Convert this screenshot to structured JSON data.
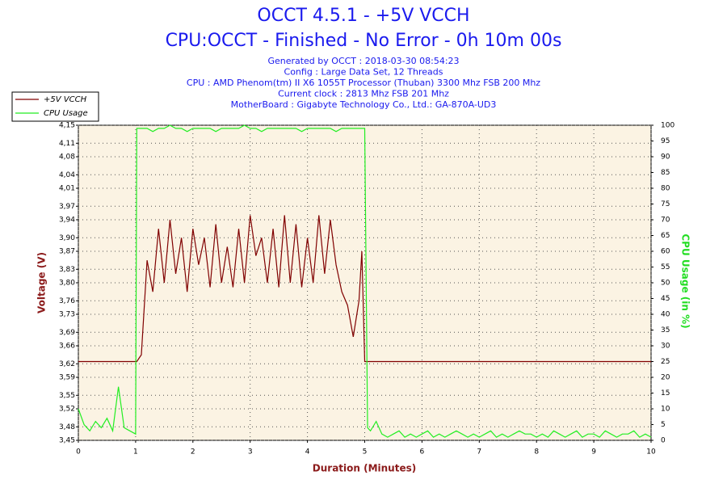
{
  "chart_data": {
    "type": "line",
    "title": "OCCT 4.5.1 - +5V VCCH",
    "subtitle": "CPU:OCCT - Finished - No Error - 0h 10m 00s",
    "info": [
      "Generated by OCCT : 2018-03-30 08:54:23",
      "Config : Large Data Set, 12 Threads",
      "CPU : AMD Phenom(tm) II X6 1055T Processor (Thuban) 3300 Mhz FSB 200 Mhz",
      "Current clock : 2813 Mhz FSB 201 Mhz",
      "MotherBoard : Gigabyte Technology Co., Ltd.: GA-870A-UD3"
    ],
    "xlabel": "Duration (Minutes)",
    "ylabel": "Voltage (V)",
    "y2label": "CPU Usage (in %)",
    "legend": "upper left",
    "grid": true,
    "xlim": [
      0,
      10
    ],
    "xticks": [
      0,
      1,
      2,
      3,
      4,
      5,
      6,
      7,
      8,
      9,
      10
    ],
    "ylim": [
      3.45,
      4.15
    ],
    "yticks": [
      {
        "value": 3.45,
        "label": "3,45"
      },
      {
        "value": 3.48,
        "label": "3,48"
      },
      {
        "value": 3.52,
        "label": "3,52"
      },
      {
        "value": 3.55,
        "label": "3,55"
      },
      {
        "value": 3.59,
        "label": "3,59"
      },
      {
        "value": 3.62,
        "label": "3,62"
      },
      {
        "value": 3.66,
        "label": "3,66"
      },
      {
        "value": 3.69,
        "label": "3,69"
      },
      {
        "value": 3.73,
        "label": "3,73"
      },
      {
        "value": 3.76,
        "label": "3,76"
      },
      {
        "value": 3.8,
        "label": "3,80"
      },
      {
        "value": 3.83,
        "label": "3,83"
      },
      {
        "value": 3.87,
        "label": "3,87"
      },
      {
        "value": 3.9,
        "label": "3,90"
      },
      {
        "value": 3.94,
        "label": "3,94"
      },
      {
        "value": 3.97,
        "label": "3,97"
      },
      {
        "value": 4.01,
        "label": "4,01"
      },
      {
        "value": 4.04,
        "label": "4,04"
      },
      {
        "value": 4.08,
        "label": "4,08"
      },
      {
        "value": 4.11,
        "label": "4,11"
      },
      {
        "value": 4.15,
        "label": "4,15"
      }
    ],
    "y2lim": [
      0,
      100
    ],
    "y2ticks": [
      0,
      5,
      10,
      15,
      20,
      25,
      30,
      35,
      40,
      45,
      50,
      55,
      60,
      65,
      70,
      75,
      80,
      85,
      90,
      95,
      100
    ],
    "x": [
      0,
      0.1,
      0.2,
      0.3,
      0.4,
      0.5,
      0.6,
      0.7,
      0.8,
      0.9,
      1,
      1.02,
      1.1,
      1.2,
      1.3,
      1.4,
      1.5,
      1.6,
      1.7,
      1.8,
      1.9,
      2,
      2.1,
      2.2,
      2.3,
      2.4,
      2.5,
      2.6,
      2.7,
      2.8,
      2.9,
      3,
      3.1,
      3.2,
      3.3,
      3.4,
      3.5,
      3.6,
      3.7,
      3.8,
      3.9,
      4,
      4.1,
      4.2,
      4.3,
      4.4,
      4.5,
      4.6,
      4.7,
      4.8,
      4.9,
      4.95,
      5,
      5.05,
      5.1,
      5.2,
      5.3,
      5.4,
      5.5,
      5.6,
      5.7,
      5.8,
      5.9,
      6,
      6.1,
      6.2,
      6.3,
      6.4,
      6.5,
      6.6,
      6.7,
      6.8,
      6.9,
      7,
      7.1,
      7.2,
      7.3,
      7.4,
      7.5,
      7.6,
      7.7,
      7.8,
      7.9,
      8,
      8.1,
      8.2,
      8.3,
      8.4,
      8.5,
      8.6,
      8.7,
      8.8,
      8.9,
      9,
      9.1,
      9.2,
      9.3,
      9.4,
      9.5,
      9.6,
      9.7,
      9.8,
      9.9,
      10
    ],
    "series": [
      {
        "name": "+5V VCCH",
        "color": "#800000",
        "values": [
          3.625,
          3.625,
          3.625,
          3.625,
          3.625,
          3.625,
          3.625,
          3.625,
          3.625,
          3.625,
          3.625,
          3.625,
          3.64,
          3.85,
          3.78,
          3.92,
          3.8,
          3.94,
          3.82,
          3.9,
          3.78,
          3.92,
          3.84,
          3.9,
          3.79,
          3.93,
          3.8,
          3.88,
          3.79,
          3.92,
          3.8,
          3.95,
          3.86,
          3.9,
          3.8,
          3.92,
          3.79,
          3.95,
          3.8,
          3.93,
          3.79,
          3.9,
          3.8,
          3.95,
          3.82,
          3.94,
          3.84,
          3.78,
          3.75,
          3.68,
          3.76,
          3.87,
          3.625,
          3.625,
          3.625,
          3.625,
          3.625,
          3.625,
          3.625,
          3.625,
          3.625,
          3.625,
          3.625,
          3.625,
          3.625,
          3.625,
          3.625,
          3.625,
          3.625,
          3.625,
          3.625,
          3.625,
          3.625,
          3.625,
          3.625,
          3.625,
          3.625,
          3.625,
          3.625,
          3.625,
          3.625,
          3.625,
          3.625,
          3.625,
          3.625,
          3.625,
          3.625,
          3.625,
          3.625,
          3.625,
          3.625,
          3.625,
          3.625,
          3.625,
          3.625,
          3.625,
          3.625,
          3.625,
          3.625,
          3.625,
          3.625,
          3.625,
          3.625,
          3.625
        ]
      },
      {
        "name": "CPU Usage",
        "color": "#22ee22",
        "axis": "y2",
        "values": [
          10,
          5,
          3,
          6,
          4,
          7,
          3,
          17,
          4,
          3,
          2,
          99,
          99,
          99,
          98,
          99,
          99,
          100,
          99,
          99,
          98,
          99,
          99,
          99,
          99,
          98,
          99,
          99,
          99,
          99,
          100,
          99,
          99,
          98,
          99,
          99,
          99,
          99,
          99,
          99,
          98,
          99,
          99,
          99,
          99,
          99,
          98,
          99,
          99,
          99,
          99,
          99,
          99,
          4,
          3,
          6,
          2,
          1,
          2,
          3,
          1,
          2,
          1,
          2,
          3,
          1,
          2,
          1,
          2,
          3,
          2,
          1,
          2,
          1,
          2,
          3,
          1,
          2,
          1,
          2,
          3,
          2,
          2,
          1,
          2,
          1,
          3,
          2,
          1,
          2,
          3,
          1,
          2,
          2,
          1,
          3,
          2,
          1,
          2,
          2,
          3,
          1,
          2,
          1
        ]
      }
    ]
  }
}
